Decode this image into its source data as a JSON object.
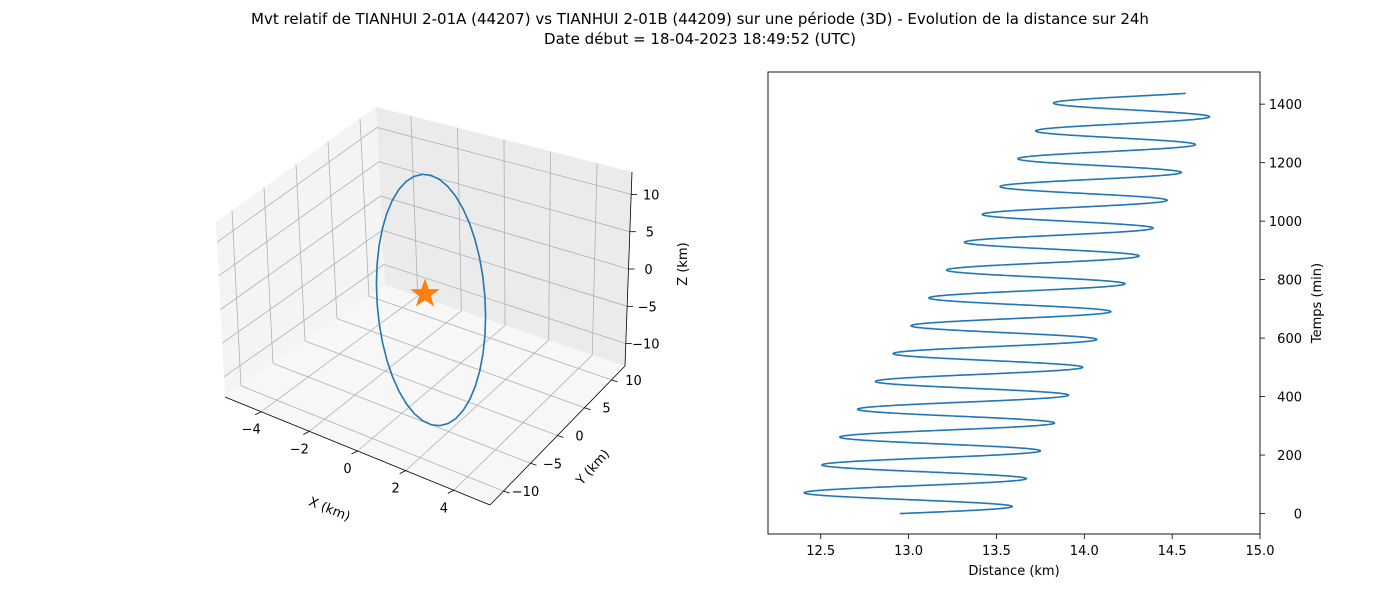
{
  "figure": {
    "title_line1": "Mvt relatif de TIANHUI 2-01A (44207) vs TIANHUI 2-01B (44209) sur une période (3D) - Evolution de la distance sur 24h",
    "title_line2": "Date début = 18-04-2023 18:49:52 (UTC)"
  },
  "colors": {
    "series": "#1f77b4",
    "marker": "#ff7f0e",
    "pane": "#f2f2f2",
    "grid": "#b0b0b0"
  },
  "chart_data": [
    {
      "type": "line3d",
      "xlabel": "X (km)",
      "ylabel": "Y (km)",
      "zlabel": "Z (km)",
      "xticks": [
        -4,
        -2,
        0,
        2,
        4
      ],
      "yticks": [
        -10,
        -5,
        0,
        5,
        10
      ],
      "zticks": [
        -10,
        -5,
        0,
        5,
        10
      ],
      "xlim": [
        -5.5,
        5.5
      ],
      "ylim": [
        -12.5,
        12.5
      ],
      "zlim": [
        -13,
        13
      ],
      "grid": true,
      "series": [
        {
          "kind": "ellipse-orbit",
          "x_amplitude": 5,
          "y_amplitude": 12.5,
          "z_amplitude": 12.5,
          "color": "#1f77b4"
        }
      ],
      "marker": {
        "shape": "star",
        "x": 0,
        "y": 0,
        "z": 0,
        "color": "#ff7f0e"
      }
    },
    {
      "type": "line",
      "xlabel": "Distance (km)",
      "ylabel": "Temps (min)",
      "xticks": [
        12.5,
        13.0,
        13.5,
        14.0,
        14.5,
        15.0
      ],
      "yticks": [
        0,
        200,
        400,
        600,
        800,
        1000,
        1200,
        1400
      ],
      "xlim": [
        12.2,
        15.0
      ],
      "ylim": [
        -70,
        1510
      ],
      "y_axis_position": "right",
      "series": [
        {
          "color": "#1f77b4",
          "t_start": 0,
          "t_end": 1437,
          "period_min": 95.2,
          "mean_start": 12.95,
          "mean_end": 14.32,
          "amplitude_start": 0.62,
          "amplitude_end": 0.46
        }
      ]
    }
  ]
}
